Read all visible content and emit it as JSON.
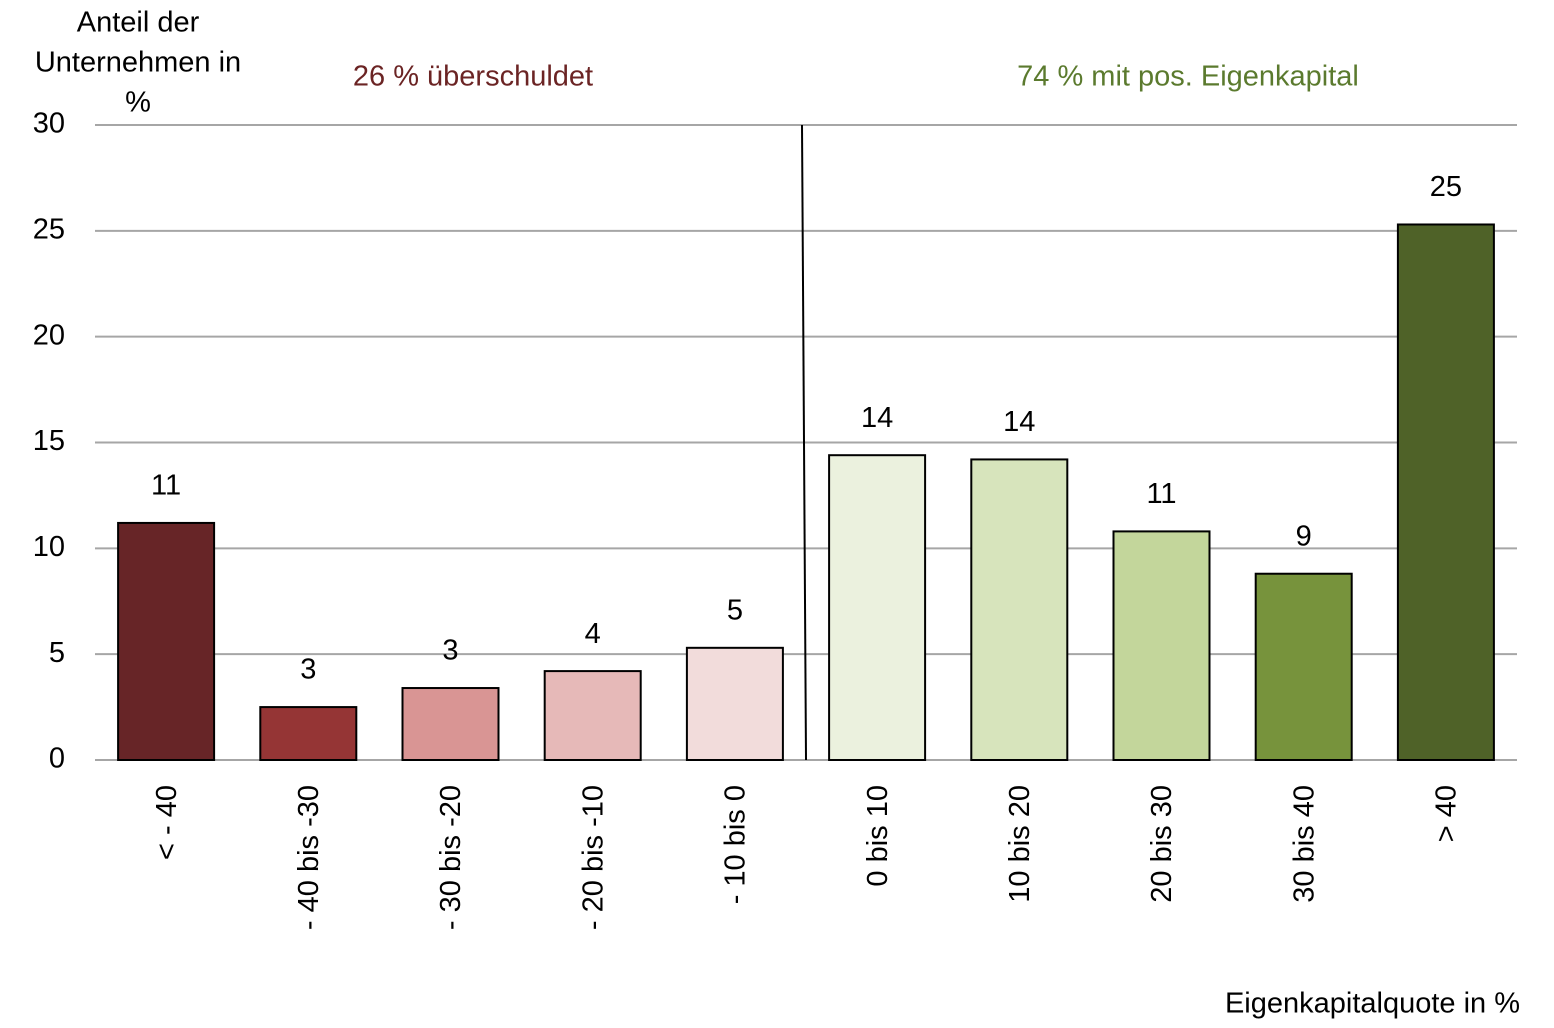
{
  "chart_data": {
    "type": "bar",
    "y_label": [
      "Anteil der",
      "Unternehmen in",
      "%"
    ],
    "x_label": "Eigenkapitalquote in %",
    "annotations": [
      {
        "text": "26 % überschuldet",
        "color": "#6b2424"
      },
      {
        "text": "74 % mit pos. Eigenkapital",
        "color": "#5b7a2e"
      }
    ],
    "categories": [
      "< - 40",
      "- 40  bis -30",
      "- 30  bis -20",
      "- 20  bis -10",
      "- 10 bis 0",
      "0 bis 10",
      "10 bis 20",
      "20 bis 30",
      "30 bis 40",
      "> 40"
    ],
    "values": [
      11.2,
      2.5,
      3.4,
      4.2,
      5.3,
      14.4,
      14.2,
      10.8,
      8.8,
      25.3
    ],
    "value_labels": [
      "11",
      "3",
      "3",
      "4",
      "5",
      "14",
      "14",
      "11",
      "9",
      "25"
    ],
    "colors": [
      "#672527",
      "#953535",
      "#d99594",
      "#e6b9b8",
      "#f2dcdb",
      "#ebf1de",
      "#d7e4bc",
      "#c3d69b",
      "#77933c",
      "#4f6228"
    ],
    "ylim": [
      0,
      30
    ],
    "yticks": [
      0,
      5,
      10,
      15,
      20,
      25,
      30
    ],
    "grid": true
  }
}
